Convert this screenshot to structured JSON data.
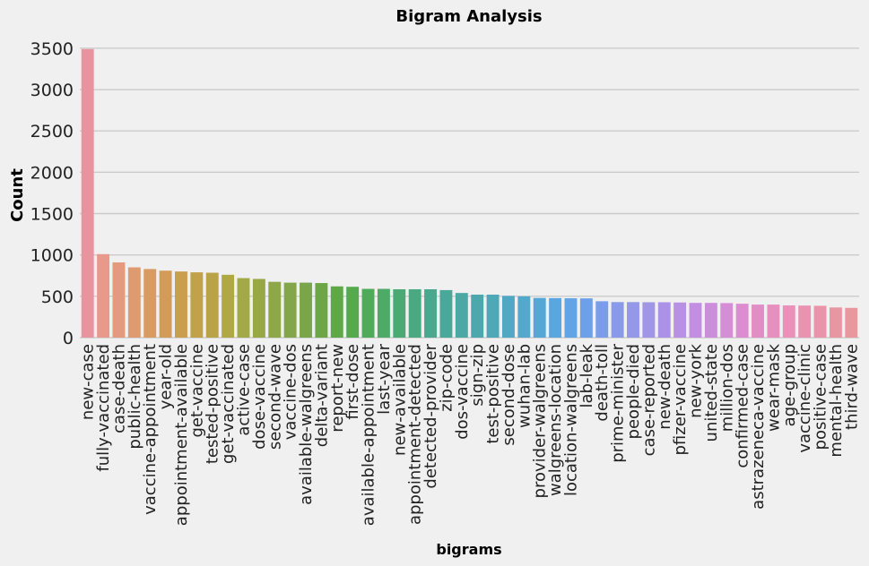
{
  "chart_data": {
    "type": "bar",
    "title": "Bigram Analysis",
    "xlabel": "bigrams",
    "ylabel": "Count",
    "ylim": [
      0,
      3650
    ],
    "yticks": [
      0,
      500,
      1000,
      1500,
      2000,
      2500,
      3000,
      3500
    ],
    "grid": true,
    "categories": [
      "new-case",
      "fully-vaccinated",
      "case-death",
      "public-health",
      "vaccine-appointment",
      "year-old",
      "appointment-available",
      "get-vaccine",
      "tested-positive",
      "get-vaccinated",
      "active-case",
      "dose-vaccine",
      "second-wave",
      "vaccine-dos",
      "available-walgreens",
      "delta-variant",
      "report-new",
      "first-dose",
      "available-appointment",
      "last-year",
      "new-available",
      "appointment-detected",
      "detected-provider",
      "zip-code",
      "dos-vaccine",
      "sign-zip",
      "test-positive",
      "second-dose",
      "wuhan-lab",
      "provider-walgreens",
      "walgreens-location",
      "location-walgreens",
      "lab-leak",
      "death-toll",
      "prime-minister",
      "people-died",
      "case-reported",
      "new-death",
      "pfizer-vaccine",
      "new-york",
      "united-state",
      "million-dos",
      "confirmed-case",
      "astrazeneca-vaccine",
      "wear-mask",
      "age-group",
      "vaccine-clinic",
      "positive-case",
      "mental-health",
      "third-wave"
    ],
    "values": [
      3490,
      1010,
      910,
      850,
      830,
      810,
      800,
      790,
      785,
      760,
      720,
      710,
      675,
      665,
      665,
      660,
      620,
      615,
      590,
      590,
      585,
      585,
      585,
      575,
      540,
      520,
      520,
      505,
      500,
      480,
      478,
      476,
      475,
      440,
      430,
      430,
      428,
      428,
      425,
      420,
      420,
      418,
      410,
      400,
      400,
      390,
      388,
      385,
      365,
      360
    ],
    "colors": [
      "#e8949f",
      "#e8998c",
      "#e39a7f",
      "#de9a71",
      "#d89b64",
      "#d29c58",
      "#cb9d4e",
      "#c3a04a",
      "#baa347",
      "#afa845",
      "#a3a946",
      "#98a847",
      "#8ea748",
      "#84a64a",
      "#78a649",
      "#6da646",
      "#5fa848",
      "#55aa4e",
      "#4fab5a",
      "#4dab67",
      "#4baa74",
      "#4aa981",
      "#4aa88e",
      "#4aa89a",
      "#4ba8a4",
      "#4da8ae",
      "#4fa8b8",
      "#51a8c2",
      "#53a8cc",
      "#55a8d6",
      "#5aa6e0",
      "#62a4e6",
      "#6da0e9",
      "#7a9ce9",
      "#889ae9",
      "#9597e9",
      "#a195e8",
      "#ac92e6",
      "#b890e4",
      "#c28ee1",
      "#cc8ddc",
      "#d58dd6",
      "#dd8dcf",
      "#e38dc7",
      "#e78fbf",
      "#e991b8",
      "#e993b1",
      "#e994aa",
      "#e996a3",
      "#e8989c"
    ]
  }
}
